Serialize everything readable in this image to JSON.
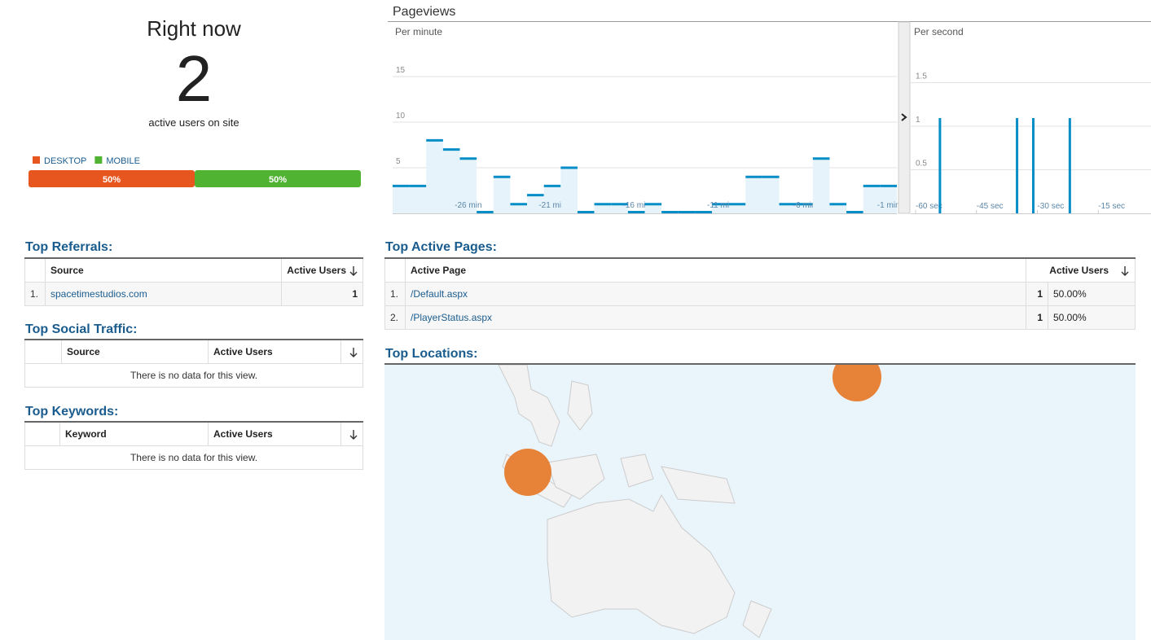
{
  "right_now": {
    "title": "Right now",
    "count": 2,
    "caption": "active users on site"
  },
  "chart_data": [
    {
      "type": "stacked-bar",
      "series": [
        {
          "name": "DESKTOP",
          "color": "#e8561f",
          "values": [
            50
          ],
          "value_labels": [
            "50%"
          ]
        },
        {
          "name": "MOBILE",
          "color": "#50b432",
          "values": [
            50
          ],
          "value_labels": [
            "50%"
          ]
        }
      ],
      "xlim": [
        0,
        100
      ]
    },
    {
      "type": "bar",
      "title": "Pageviews",
      "subtitle": "Per minute",
      "categories": [
        null,
        null,
        null,
        null,
        "-26 min",
        null,
        null,
        null,
        null,
        "-21 min",
        null,
        null,
        null,
        null,
        "-16 min",
        null,
        null,
        null,
        null,
        "-11 min",
        null,
        null,
        null,
        null,
        "-6 min",
        null,
        null,
        null,
        null,
        "-1 min"
      ],
      "values": [
        3,
        3,
        8,
        7,
        6,
        0,
        4,
        1,
        2,
        3,
        5,
        0,
        1,
        1,
        0,
        1,
        0,
        0,
        0,
        1,
        1,
        4,
        4,
        1,
        1,
        6,
        1,
        0,
        3,
        3
      ],
      "color": "#058dc7",
      "ylim": [
        0,
        20
      ],
      "yticks": [
        5,
        10,
        15
      ],
      "grid": true
    },
    {
      "type": "spike",
      "subtitle": "Per second",
      "x": [
        -54,
        -35,
        -31,
        -22
      ],
      "values": [
        1,
        1,
        1,
        1
      ],
      "color": "#058dc7",
      "xlim": [
        -60,
        -2
      ],
      "xticks": [
        {
          "value": -60,
          "label": "-60 sec"
        },
        {
          "value": -45,
          "label": "-45 sec"
        },
        {
          "value": -30,
          "label": "-30 sec"
        },
        {
          "value": -15,
          "label": "-15 sec"
        }
      ],
      "ylim": [
        0,
        2
      ],
      "yticks": [
        0.5,
        1,
        1.5
      ],
      "grid": true
    }
  ],
  "referrals": {
    "title": "Top Referrals:",
    "headers": [
      "Source",
      "Active Users"
    ],
    "rows": [
      [
        "1.",
        "spacetimestudios.com",
        1
      ]
    ]
  },
  "social": {
    "title": "Top Social Traffic:",
    "headers": [
      "Source",
      "Active Users"
    ],
    "empty": "There is no data for this view."
  },
  "keywords": {
    "title": "Top Keywords:",
    "headers": [
      "Keyword",
      "Active Users"
    ],
    "empty": "There is no data for this view."
  },
  "active_pages": {
    "title": "Top Active Pages:",
    "headers": [
      "Active Page",
      "Active Users"
    ],
    "rows": [
      [
        "1.",
        "/Default.aspx",
        1,
        "50.00%"
      ],
      [
        "2.",
        "/PlayerStatus.aspx",
        1,
        "50.00%"
      ]
    ]
  },
  "locations": {
    "title": "Top Locations:"
  }
}
